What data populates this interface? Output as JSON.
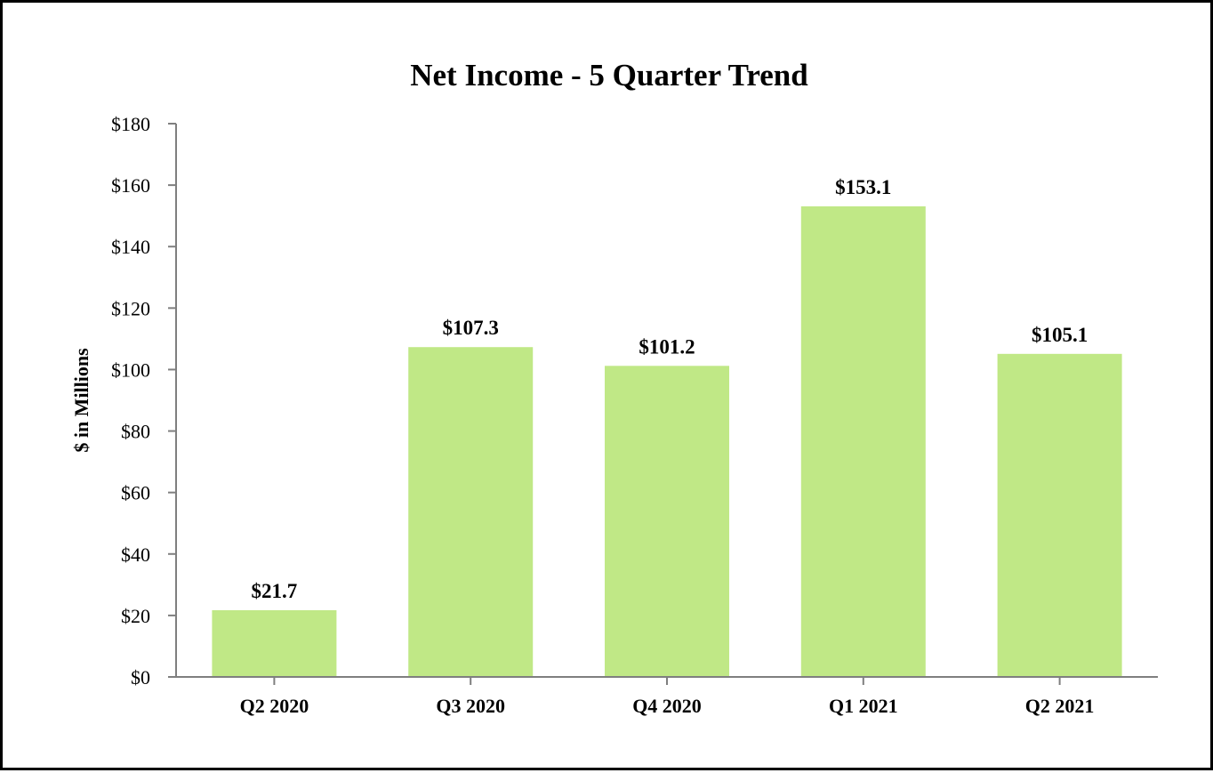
{
  "chart_data": {
    "type": "bar",
    "title": "Net Income - 5 Quarter Trend",
    "ylabel": "$ in Millions",
    "xlabel": "",
    "categories": [
      "Q2 2020",
      "Q3 2020",
      "Q4 2020",
      "Q1 2021",
      "Q2 2021"
    ],
    "values": [
      21.7,
      107.3,
      101.2,
      153.1,
      105.1
    ],
    "value_labels": [
      "$21.7",
      "$107.3",
      "$101.2",
      "$153.1",
      "$105.1"
    ],
    "ylim": [
      0,
      180
    ],
    "yticks": [
      0,
      20,
      40,
      60,
      80,
      100,
      120,
      140,
      160,
      180
    ],
    "ytick_labels": [
      "$0",
      "$20",
      "$40",
      "$60",
      "$80",
      "$100",
      "$120",
      "$140",
      "$160",
      "$180"
    ],
    "grid": false,
    "legend": "none",
    "bar_color": "#c0e886",
    "axis_color": "#7f7f7f"
  }
}
